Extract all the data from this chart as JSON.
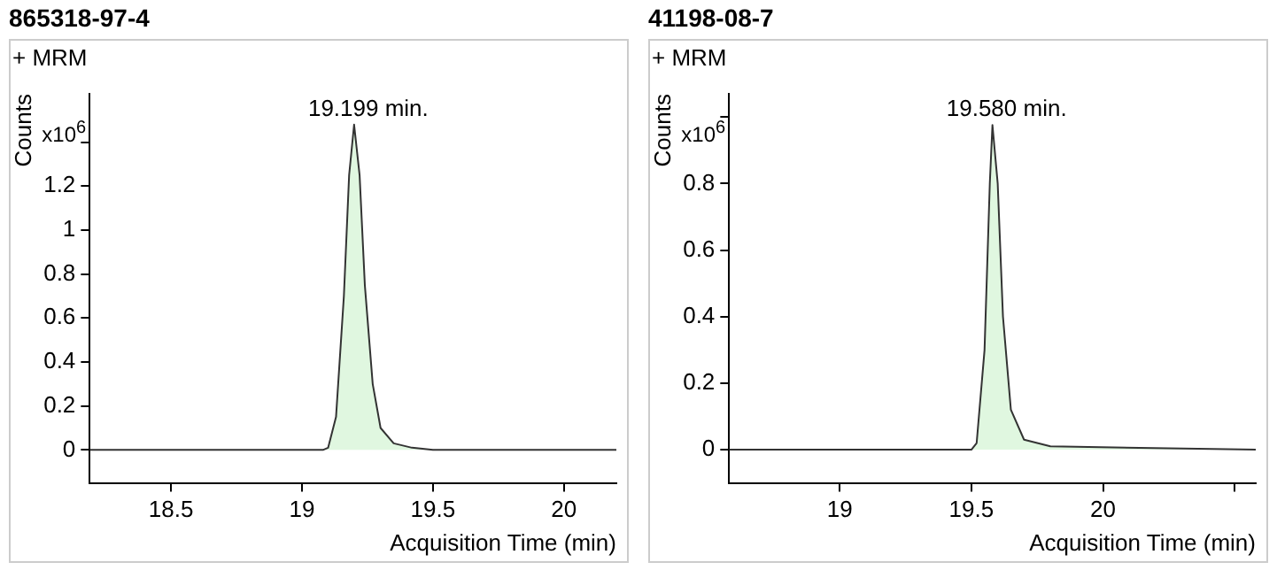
{
  "chart_data": [
    {
      "type": "area",
      "title": "865318-97-4",
      "ylabel": "Counts",
      "xlabel": "Acquisition Time (min)",
      "annotations": [
        "+ MRM",
        "x10$^{6}$",
        {
          "text": "19.199 min.",
          "x": 19.199,
          "y": 1.48
        }
      ],
      "series": [
        {
          "color": "#e0f7e0",
          "x": [
            18.19,
            19.0,
            19.08,
            19.1,
            19.13,
            19.16,
            19.18,
            19.199,
            19.22,
            19.24,
            19.27,
            19.3,
            19.35,
            19.42,
            19.5,
            20.2
          ],
          "values": [
            0,
            0,
            0,
            0.01,
            0.15,
            0.7,
            1.25,
            1.48,
            1.25,
            0.75,
            0.3,
            0.1,
            0.03,
            0.01,
            0,
            0
          ]
        }
      ],
      "xlim": [
        18.19,
        20.2
      ],
      "xticks": [
        18.5,
        19,
        19.5,
        20
      ],
      "ylim": [
        -0.15,
        1.62
      ],
      "yticks": [
        0,
        0.2,
        0.4,
        0.6,
        0.8,
        1,
        1.2,
        {
          "value": 1.4,
          "label": null
        }
      ],
      "grid": false,
      "legend": false
    },
    {
      "type": "area",
      "title": "41198-08-7",
      "ylabel": "Counts",
      "xlabel": "Acquisition Time (min)",
      "annotations": [
        "+ MRM",
        "x10$^{6}$",
        {
          "text": "19.580 min.",
          "x": 19.58,
          "y": 0.976
        }
      ],
      "series": [
        {
          "color": "#e0f7e0",
          "x": [
            18.58,
            19.4,
            19.5,
            19.52,
            19.55,
            19.57,
            19.58,
            19.6,
            19.62,
            19.65,
            19.7,
            19.8,
            20.58
          ],
          "values": [
            0,
            0,
            0,
            0.02,
            0.3,
            0.8,
            0.976,
            0.8,
            0.4,
            0.12,
            0.03,
            0.01,
            0
          ]
        }
      ],
      "xlim": [
        18.58,
        20.58
      ],
      "xticks": [
        19,
        19.5,
        20,
        {
          "value": 20.5,
          "label": null
        }
      ],
      "ylim": [
        -0.1,
        1.07
      ],
      "yticks": [
        0,
        0.2,
        0.4,
        0.6,
        0.8,
        {
          "value": 1,
          "label": null
        }
      ],
      "grid": false,
      "legend": false
    }
  ]
}
